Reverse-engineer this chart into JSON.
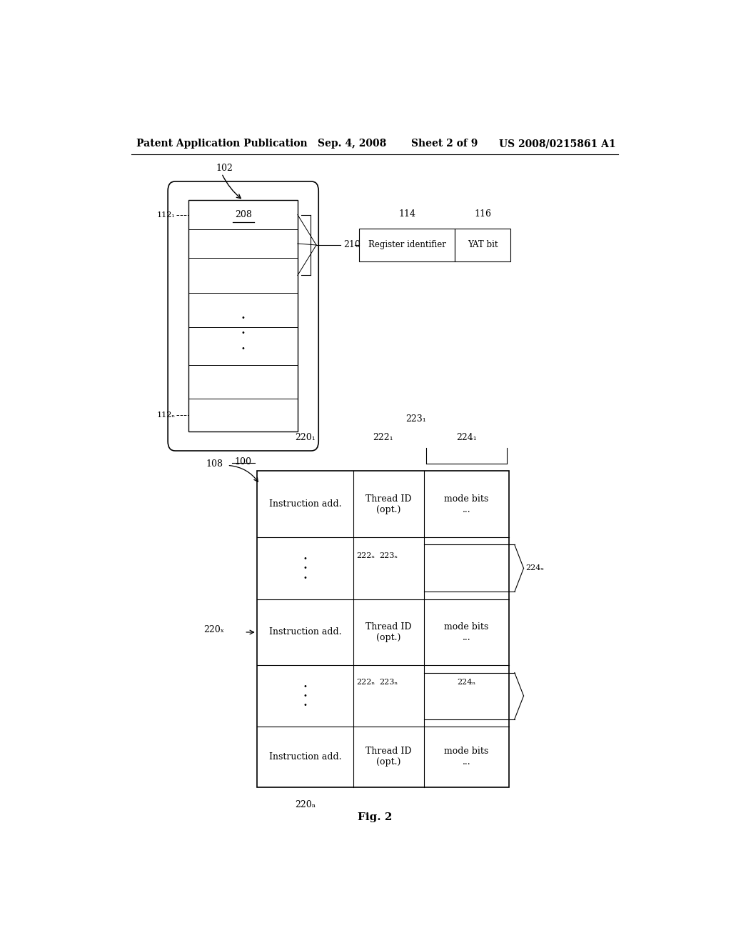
{
  "bg_color": "#ffffff",
  "header_text": "Patent Application Publication",
  "header_date": "Sep. 4, 2008",
  "header_sheet": "Sheet 2 of 9",
  "header_patent": "US 2008/0215861 A1",
  "fig_label": "Fig. 2",
  "label_102": "102",
  "label_112_1": "112₁",
  "label_112_n": "112ₙ",
  "label_100": "100",
  "label_210": "210",
  "label_114": "114",
  "label_116": "116",
  "reg_box_text": "Register identifier",
  "yat_box_text": "YAT bit",
  "label_108": "108",
  "label_220_1": "220₁",
  "label_222_1": "222₁",
  "label_223_1": "223₁",
  "label_224_1": "224₁",
  "label_220_x": "220ₓ",
  "label_222_x": "222ₓ",
  "label_223_x": "223ₓ",
  "label_224_x": "224ₓ",
  "label_222_n": "222ₙ",
  "label_223_n": "223ₙ",
  "label_224_n": "224ₙ",
  "label_220_n": "220ₙ",
  "cell_r1c1": "Instruction add.",
  "cell_r1c2": "Thread ID\n(opt.)",
  "cell_r1c3": "mode bits\n...",
  "cell_r3c1": "Instruction add.",
  "cell_r3c2": "Thread ID\n(opt.)",
  "cell_r3c3": "mode bits\n...",
  "cell_r5c1": "Instruction add.",
  "cell_r5c2": "Thread ID\n(opt.)",
  "cell_r5c3": "mode bits\n...",
  "label_208": "208"
}
